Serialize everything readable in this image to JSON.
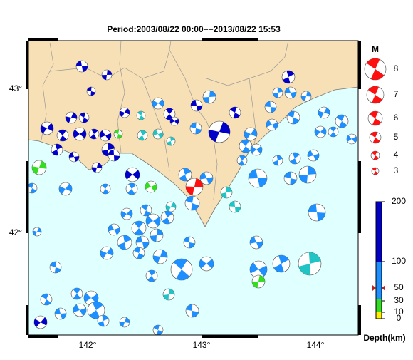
{
  "title": "Period:2003/08/22 00:00−−2013/08/22 15:53",
  "map": {
    "lat_labels": [
      "43°",
      "42°"
    ],
    "lon_labels": [
      "142°",
      "143°",
      "144°"
    ]
  },
  "magnitude_legend": {
    "title": "M",
    "values": [
      8,
      7,
      6,
      5,
      4,
      3
    ]
  },
  "depth_scale": {
    "label": "Depth(km)",
    "ticks": [
      0,
      10,
      30,
      50,
      100,
      200
    ]
  }
}
